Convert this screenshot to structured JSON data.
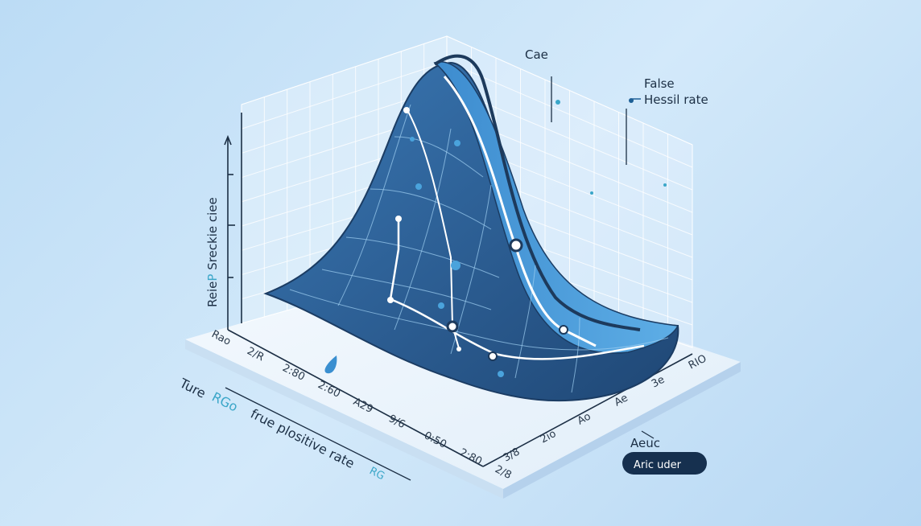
{
  "colors": {
    "background": "#c6e1f7",
    "surface_dark": "#2e5f92",
    "surface_light": "#4a9ad8",
    "outline": "#1d3a5c",
    "accent_teal": "#3aa6c8",
    "badge": "#16304f"
  },
  "labels": {
    "top_label": "Cae",
    "legend_line1": "False",
    "legend_line2": "Hessil rate",
    "y_axis_label_a": "Reie",
    "y_axis_label_b": "P",
    "y_axis_label_c": " Sreckie ciee",
    "x_axis_word1": "Ture",
    "x_axis_word2": "RGo",
    "x_axis_word3": "frue plositive rate",
    "x_axis_word4": "RG",
    "auc_label": "Aeuc",
    "badge_text": "Aric uder"
  },
  "left_ticks": [
    "Rao",
    "2/R",
    "2:80",
    "2:60",
    "A29",
    "9/6",
    "0:50",
    "2:80",
    "2/8"
  ],
  "right_ticks": [
    "3/8",
    "2io",
    "Ao",
    "Ae",
    "3e",
    "RIO"
  ],
  "icons": [
    "droplet-icon",
    "arrow-up-icon"
  ]
}
